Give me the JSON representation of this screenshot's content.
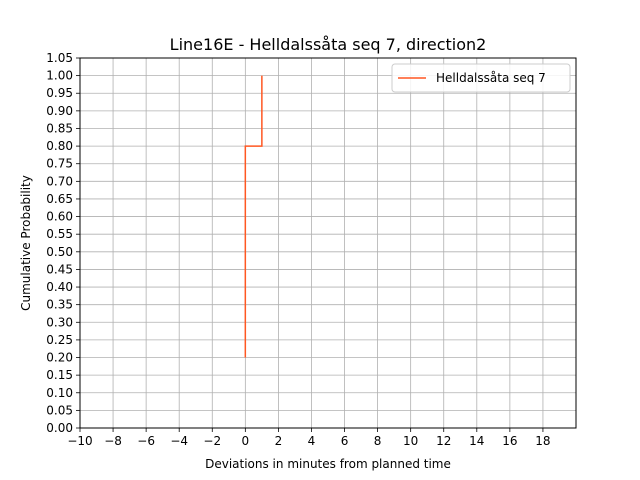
{
  "chart_data": {
    "type": "line",
    "title": "Line16E - Helldalssåta seq 7, direction2",
    "xlabel": "Deviations in minutes from planned time",
    "ylabel": "Cumulative Probability",
    "xlim": [
      -10,
      20
    ],
    "ylim": [
      0,
      1.05
    ],
    "xticks": [
      -10,
      -8,
      -6,
      -4,
      -2,
      0,
      2,
      4,
      6,
      8,
      10,
      12,
      14,
      16,
      18
    ],
    "xtick_labels": [
      "−10",
      "−8",
      "−6",
      "−4",
      "−2",
      "0",
      "2",
      "4",
      "6",
      "8",
      "10",
      "12",
      "14",
      "16",
      "18"
    ],
    "yticks": [
      0,
      0.05,
      0.1,
      0.15,
      0.2,
      0.25,
      0.3,
      0.35,
      0.4,
      0.45,
      0.5,
      0.55,
      0.6,
      0.65,
      0.7,
      0.75,
      0.8,
      0.85,
      0.9,
      0.95,
      1.0,
      1.05
    ],
    "ytick_labels": [
      "0.00",
      "0.05",
      "0.10",
      "0.15",
      "0.20",
      "0.25",
      "0.30",
      "0.35",
      "0.40",
      "0.45",
      "0.50",
      "0.55",
      "0.60",
      "0.65",
      "0.70",
      "0.75",
      "0.80",
      "0.85",
      "0.90",
      "0.95",
      "1.00",
      "1.05"
    ],
    "grid": true,
    "legend": "top-right",
    "series": [
      {
        "name": "Helldalssåta seq 7",
        "color": "#ff5722",
        "step": true,
        "x": [
          0,
          0,
          1,
          1
        ],
        "y": [
          0.2,
          0.8,
          0.8,
          1.0
        ]
      }
    ]
  }
}
